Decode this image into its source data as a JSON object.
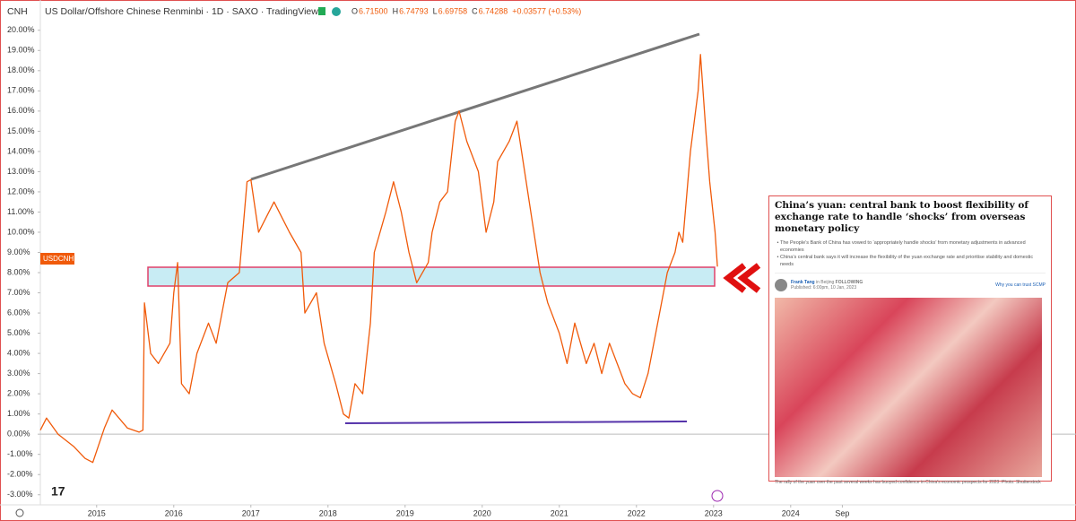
{
  "header": {
    "symbol": "CNH",
    "title": "US Dollar/Offshore Chinese Renminbi · 1D · SAXO · TradingView",
    "ohlc": [
      {
        "label": "O",
        "value": "6.71500"
      },
      {
        "label": "H",
        "value": "6.74793"
      },
      {
        "label": "L",
        "value": "6.69758"
      },
      {
        "label": "C",
        "value": "6.74288"
      }
    ],
    "change": "+0.03577 (+0.53%)"
  },
  "chart_data": {
    "type": "line",
    "x": [
      2014.27,
      2014.35,
      2014.5,
      2014.7,
      2014.85,
      2014.95,
      2015.1,
      2015.2,
      2015.4,
      2015.55,
      2015.6,
      2015.62,
      2015.7,
      2015.8,
      2015.95,
      2016.0,
      2016.05,
      2016.1,
      2016.2,
      2016.3,
      2016.45,
      2016.55,
      2016.7,
      2016.85,
      2016.95,
      2017.0,
      2017.1,
      2017.3,
      2017.5,
      2017.65,
      2017.7,
      2017.85,
      2017.95,
      2018.1,
      2018.2,
      2018.27,
      2018.35,
      2018.45,
      2018.55,
      2018.6,
      2018.75,
      2018.85,
      2018.95,
      2019.05,
      2019.15,
      2019.3,
      2019.35,
      2019.45,
      2019.55,
      2019.65,
      2019.7,
      2019.8,
      2019.95,
      2020.05,
      2020.15,
      2020.2,
      2020.35,
      2020.45,
      2020.55,
      2020.65,
      2020.75,
      2020.85,
      2021.0,
      2021.1,
      2021.2,
      2021.35,
      2021.45,
      2021.55,
      2021.65,
      2021.75,
      2021.85,
      2021.95,
      2022.05,
      2022.15,
      2022.3,
      2022.4,
      2022.5,
      2022.55,
      2022.6,
      2022.7,
      2022.8,
      2022.83,
      2022.9,
      2022.95,
      2023.02,
      2023.05
    ],
    "series": [
      {
        "name": "USDCNH",
        "color": "#f05a0a",
        "values": [
          0.2,
          0.8,
          0.0,
          -0.6,
          -1.2,
          -1.4,
          0.3,
          1.2,
          0.3,
          0.1,
          0.2,
          6.5,
          4.0,
          3.5,
          4.5,
          7.0,
          8.5,
          2.5,
          2.0,
          4.0,
          5.5,
          4.5,
          7.5,
          8.0,
          12.5,
          12.6,
          10.0,
          11.5,
          10.0,
          9.0,
          6.0,
          7.0,
          4.5,
          2.5,
          1.0,
          0.8,
          2.5,
          2.0,
          5.5,
          9.0,
          11.0,
          12.5,
          11.0,
          9.0,
          7.5,
          8.5,
          10.0,
          11.5,
          12.0,
          15.5,
          16.0,
          14.5,
          13.0,
          10.0,
          11.5,
          13.5,
          14.5,
          15.5,
          13.0,
          10.5,
          8.0,
          6.5,
          5.0,
          3.5,
          5.5,
          3.5,
          4.5,
          3.0,
          4.5,
          3.5,
          2.5,
          2.0,
          1.8,
          3.0,
          6.0,
          8.0,
          9.0,
          10.0,
          9.5,
          14.0,
          17.0,
          18.8,
          15.0,
          12.5,
          10.0,
          8.3
        ]
      }
    ],
    "xlim": [
      2014.27,
      2027.7
    ],
    "ylim": [
      -3.5,
      21.5
    ],
    "xticks": [
      2015,
      2016,
      2017,
      2018,
      2019,
      2020,
      2021,
      2022,
      2023,
      2024,
      {
        "value": 2024.67,
        "label": "Sep"
      }
    ],
    "yticks": [
      {
        "value": 20,
        "label": "20.00%"
      },
      {
        "value": 19,
        "label": "19.00%"
      },
      {
        "value": 18,
        "label": "18.00%"
      },
      {
        "value": 17,
        "label": "17.00%"
      },
      {
        "value": 16,
        "label": "16.00%"
      },
      {
        "value": 15,
        "label": "15.00%"
      },
      {
        "value": 14,
        "label": "14.00%"
      },
      {
        "value": 13,
        "label": "13.00%"
      },
      {
        "value": 12,
        "label": "12.00%"
      },
      {
        "value": 11,
        "label": "11.00%"
      },
      {
        "value": 10,
        "label": "10.00%"
      },
      {
        "value": 9,
        "label": "9.00%"
      },
      {
        "value": 8,
        "label": "8.00%"
      },
      {
        "value": 7,
        "label": "7.00%"
      },
      {
        "value": 6,
        "label": "6.00%"
      },
      {
        "value": 5,
        "label": "5.00%"
      },
      {
        "value": 4,
        "label": "4.00%"
      },
      {
        "value": 3,
        "label": "3.00%"
      },
      {
        "value": 2,
        "label": "2.00%"
      },
      {
        "value": 1,
        "label": "1.00%"
      },
      {
        "value": 0,
        "label": "0.00%"
      },
      {
        "value": -1,
        "label": "-1.00%"
      },
      {
        "value": -2,
        "label": "-2.00%"
      },
      {
        "value": -3,
        "label": "-3.00%"
      }
    ],
    "zero_line": true
  },
  "news": {
    "headline": "China’s yuan: central bank to boost flexibility of exchange rate to handle ‘shocks’ from overseas monetary policy",
    "bullets": [
      "The People’s Bank of China has vowed to ‘appropriately handle shocks’ from monetary adjustments in advanced economies",
      "China’s central bank says it will increase the flexibility of the yuan exchange rate and prioritise stability and domestic needs"
    ],
    "author": "Frank Tang",
    "location": "in Beijing",
    "follow": "FOLLOWING",
    "published": "Published: 6:00pm, 10 Jan, 2023",
    "trust": "Why you can trust SCMP",
    "caption": "The rally of the yuan over the past several weeks has buoyed confidence in China’s economic prospects for 2023. Photo: Shutterstock"
  }
}
